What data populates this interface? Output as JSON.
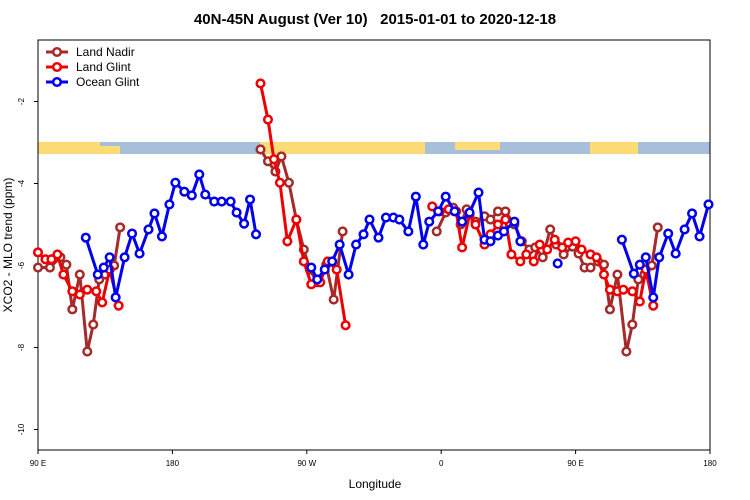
{
  "chart_data": {
    "type": "line",
    "title": "40N-45N August (Ver 10)   2015-01-01 to 2020-12-18",
    "x_label": "Longitude",
    "y_label": "XCO2 - MLO trend (ppm)",
    "xlim": [
      90,
      540
    ],
    "ylim": [
      -10.5,
      -0.5
    ],
    "xticks": [
      {
        "value": 90,
        "label": "90 E"
      },
      180,
      {
        "value": 270,
        "label": "90 W"
      },
      {
        "value": 360,
        "label": "0"
      },
      {
        "value": 450,
        "label": "90 E"
      },
      {
        "value": 540,
        "label": "180"
      }
    ],
    "yticks": [
      -10,
      -8,
      -6,
      -4,
      -2
    ],
    "legend": "top-left",
    "series": [
      {
        "name": "Land Nadir",
        "color": "#a52a2a",
        "x": [
          90,
          98,
          105,
          109,
          113,
          118,
          123,
          127,
          131,
          135,
          141,
          145,
          null,
          239,
          244,
          249,
          253,
          258,
          263,
          268,
          272,
          277,
          283,
          288,
          294,
          null,
          357,
          363,
          368,
          373,
          377,
          383,
          389,
          393,
          398,
          403,
          409,
          414,
          419,
          423,
          428,
          433,
          437,
          442,
          448,
          452,
          456,
          460,
          465,
          469,
          473,
          478,
          484,
          488,
          492,
          496,
          501,
          505
        ],
        "values": [
          -6.05,
          -6.05,
          -5.8,
          -5.98,
          -7.07,
          -6.22,
          -8.1,
          -7.44,
          -6.34,
          -6.22,
          -6.0,
          -5.07,
          null,
          -3.17,
          -3.46,
          -3.71,
          -3.34,
          -3.98,
          -4.88,
          -5.61,
          -6.1,
          -6.41,
          -5.98,
          -6.83,
          -5.17,
          null,
          -5.17,
          -4.71,
          -4.59,
          -5.0,
          -4.63,
          -4.93,
          -4.8,
          -4.88,
          -4.68,
          -4.68,
          -5.0,
          -5.41,
          -5.61,
          -5.56,
          -5.8,
          -5.12,
          -5.49,
          -5.73,
          -5.54,
          -5.71,
          -6.05,
          -6.05,
          -5.9,
          -5.98,
          -7.07,
          -6.22,
          -8.1,
          -7.44,
          -6.34,
          -6.22,
          -6.0,
          -5.07
        ]
      },
      {
        "name": "Land Glint",
        "color": "#ee0000",
        "x": [
          90,
          95,
          99,
          103,
          107,
          113,
          118,
          123,
          129,
          133,
          138,
          144,
          null,
          239,
          244,
          248,
          252,
          257,
          263,
          268,
          273,
          279,
          284,
          290,
          296,
          null,
          354,
          359,
          365,
          370,
          374,
          379,
          383,
          389,
          393,
          398,
          403,
          407,
          413,
          417,
          422,
          426,
          431,
          436,
          441,
          445,
          450,
          454,
          460,
          464,
          469,
          473,
          478,
          482,
          488,
          493,
          497,
          502
        ],
        "values": [
          -5.68,
          -5.85,
          -5.85,
          -5.73,
          -6.22,
          -6.63,
          -6.71,
          -6.59,
          -6.63,
          -6.9,
          -6.1,
          -6.98,
          null,
          -1.56,
          -2.44,
          -3.41,
          -3.98,
          -5.41,
          -4.88,
          -5.9,
          -6.46,
          -6.41,
          -5.9,
          -6.1,
          -7.46,
          null,
          -4.56,
          -4.68,
          -4.63,
          -4.68,
          -5.56,
          -4.76,
          -5.0,
          -5.49,
          -5.24,
          -5.0,
          -4.88,
          -5.73,
          -5.9,
          -5.73,
          -5.9,
          -5.49,
          -5.61,
          -5.37,
          -5.56,
          -5.44,
          -5.41,
          -5.61,
          -5.73,
          -5.8,
          -6.22,
          -6.59,
          -6.63,
          -6.59,
          -6.63,
          -6.88,
          -6.1,
          -6.98
        ]
      },
      {
        "name": "Ocean Glint",
        "color": "#0000ee",
        "x": [
          122,
          130,
          134,
          138,
          142,
          148,
          153,
          158,
          164,
          168,
          173,
          178,
          182,
          188,
          193,
          198,
          202,
          208,
          213,
          219,
          223,
          228,
          232,
          236,
          null,
          273,
          277,
          282,
          287,
          292,
          298,
          303,
          308,
          312,
          318,
          323,
          328,
          332,
          338,
          343,
          348,
          352,
          358,
          363,
          369,
          374,
          379,
          385,
          389,
          393,
          398,
          402,
          409,
          413,
          null,
          438,
          null,
          481,
          489,
          493,
          497,
          502,
          506,
          512,
          517,
          523,
          528,
          533,
          539
        ],
        "values": [
          -5.32,
          -6.22,
          -6.05,
          -5.8,
          -6.78,
          -5.8,
          -5.22,
          -5.71,
          -5.12,
          -4.73,
          -5.29,
          -4.51,
          -3.98,
          -4.2,
          -4.29,
          -3.78,
          -4.27,
          -4.44,
          -4.44,
          -4.44,
          -4.71,
          -4.98,
          -4.39,
          -5.24,
          null,
          -6.05,
          -6.34,
          -6.1,
          -5.9,
          -5.49,
          -6.22,
          -5.49,
          -5.24,
          -4.88,
          -5.32,
          -4.83,
          -4.83,
          -4.88,
          -5.17,
          -4.32,
          -5.49,
          -4.93,
          -4.68,
          -4.32,
          -4.68,
          -4.93,
          -4.71,
          -4.22,
          -5.37,
          -5.41,
          -5.27,
          -5.17,
          -4.93,
          -5.41,
          null,
          -5.95,
          null,
          -5.37,
          -6.2,
          -5.98,
          -5.8,
          -6.78,
          -5.8,
          -5.22,
          -5.71,
          -5.12,
          -4.73,
          -5.29,
          -4.51
        ]
      }
    ]
  }
}
